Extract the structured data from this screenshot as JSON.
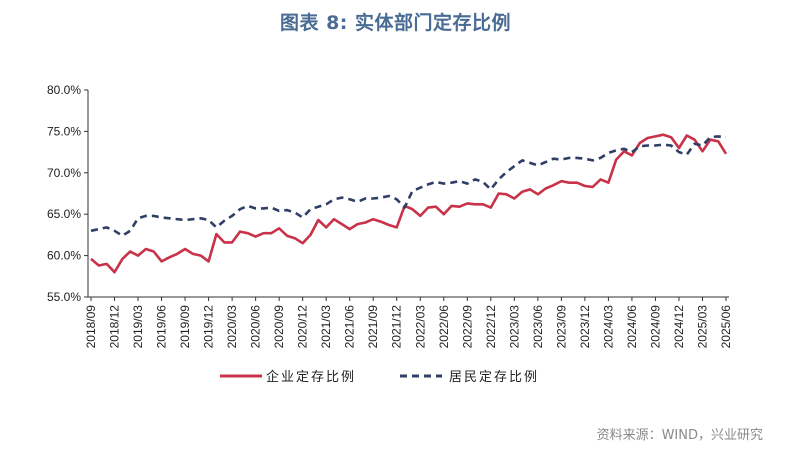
{
  "figure": {
    "title": "图表 8: 实体部门定存比例",
    "source": "资料来源：WIND，兴业研究"
  },
  "chart_data": {
    "type": "line",
    "x": [
      "2018/09",
      "2018/10",
      "2018/11",
      "2018/12",
      "2019/01",
      "2019/02",
      "2019/03",
      "2019/04",
      "2019/05",
      "2019/06",
      "2019/07",
      "2019/08",
      "2019/09",
      "2019/10",
      "2019/11",
      "2019/12",
      "2020/01",
      "2020/02",
      "2020/03",
      "2020/04",
      "2020/05",
      "2020/06",
      "2020/07",
      "2020/08",
      "2020/09",
      "2020/10",
      "2020/11",
      "2020/12",
      "2021/01",
      "2021/02",
      "2021/03",
      "2021/04",
      "2021/05",
      "2021/06",
      "2021/07",
      "2021/08",
      "2021/09",
      "2021/10",
      "2021/11",
      "2021/12",
      "2022/01",
      "2022/02",
      "2022/03",
      "2022/04",
      "2022/05",
      "2022/06",
      "2022/07",
      "2022/08",
      "2022/09",
      "2022/10",
      "2022/11",
      "2022/12",
      "2023/01",
      "2023/02",
      "2023/03",
      "2023/04",
      "2023/05",
      "2023/06",
      "2023/07",
      "2023/08",
      "2023/09",
      "2023/10",
      "2023/11",
      "2023/12",
      "2024/01",
      "2024/02",
      "2024/03",
      "2024/04",
      "2024/05",
      "2024/06",
      "2024/07",
      "2024/08",
      "2024/09",
      "2024/10",
      "2024/11",
      "2024/12",
      "2025/01",
      "2025/02",
      "2025/03",
      "2025/04",
      "2025/05",
      "2025/06"
    ],
    "x_tick_labels": [
      "2018/09",
      "2018/12",
      "2019/03",
      "2019/06",
      "2019/09",
      "2019/12",
      "2020/03",
      "2020/06",
      "2020/09",
      "2020/12",
      "2021/03",
      "2021/06",
      "2021/09",
      "2021/12",
      "2022/03",
      "2022/06",
      "2022/09",
      "2022/12",
      "2023/03",
      "2023/06",
      "2023/09",
      "2023/12",
      "2024/03",
      "2024/06",
      "2024/09",
      "2024/12",
      "2025/03",
      "2025/06"
    ],
    "y_ticks": [
      "55.0%",
      "60.0%",
      "65.0%",
      "70.0%",
      "75.0%",
      "80.0%"
    ],
    "ylim": [
      55,
      80
    ],
    "series": [
      {
        "name": "企业定存比例",
        "color": "#c8334a",
        "style": "solid",
        "values": [
          59.6,
          58.8,
          59.0,
          58.0,
          59.6,
          60.5,
          60.0,
          60.8,
          60.5,
          59.3,
          59.8,
          60.2,
          60.8,
          60.2,
          60.0,
          59.3,
          62.6,
          61.6,
          61.6,
          62.9,
          62.7,
          62.3,
          62.7,
          62.7,
          63.3,
          62.4,
          62.1,
          61.5,
          62.5,
          64.3,
          63.4,
          64.4,
          63.8,
          63.2,
          63.8,
          64.0,
          64.4,
          64.1,
          63.7,
          63.4,
          66.0,
          65.6,
          64.8,
          65.8,
          65.9,
          65.0,
          66.0,
          65.9,
          66.3,
          66.2,
          66.2,
          65.8,
          67.5,
          67.4,
          66.9,
          67.7,
          68.0,
          67.4,
          68.1,
          68.5,
          69.0,
          68.8,
          68.8,
          68.4,
          68.3,
          69.2,
          68.8,
          71.6,
          72.6,
          72.1,
          73.6,
          74.2,
          74.4,
          74.6,
          74.3,
          73.0,
          74.5,
          74.0,
          72.6,
          74.0,
          73.8,
          72.3
        ]
      },
      {
        "name": "居民定存比例",
        "color": "#2f3f66",
        "style": "dashed",
        "values": [
          63.0,
          63.2,
          63.4,
          63.0,
          62.4,
          63.0,
          64.5,
          64.8,
          64.8,
          64.6,
          64.5,
          64.4,
          64.3,
          64.4,
          64.5,
          64.3,
          63.4,
          64.2,
          64.8,
          65.6,
          66.0,
          65.7,
          65.7,
          65.8,
          65.4,
          65.5,
          65.2,
          64.6,
          65.6,
          65.9,
          66.2,
          66.8,
          67.0,
          66.8,
          66.5,
          66.9,
          66.9,
          67.0,
          67.2,
          66.8,
          65.8,
          67.8,
          68.2,
          68.6,
          68.9,
          68.7,
          68.8,
          69.0,
          68.7,
          69.2,
          68.9,
          68.0,
          69.2,
          70.1,
          70.8,
          71.5,
          71.2,
          70.9,
          71.3,
          71.7,
          71.6,
          71.8,
          71.8,
          71.7,
          71.5,
          71.8,
          72.4,
          72.7,
          72.9,
          72.5,
          73.2,
          73.3,
          73.3,
          73.4,
          73.3,
          72.5,
          72.2,
          73.5,
          73.3,
          74.3,
          74.4,
          74.3
        ]
      }
    ],
    "grid": false,
    "legend_position": "bottom"
  }
}
